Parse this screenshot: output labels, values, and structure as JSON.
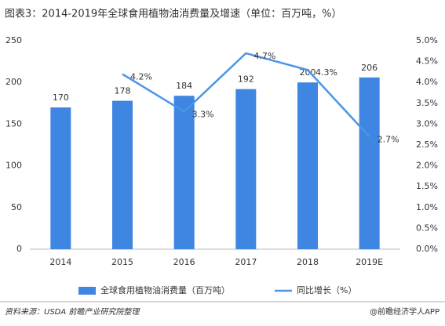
{
  "chart_data": {
    "type": "bar",
    "title": "图表3：2014-2019年全球食用植物油消费量及增速（单位：百万吨，%）",
    "categories": [
      "2014",
      "2015",
      "2016",
      "2017",
      "2018",
      "2019E"
    ],
    "series": [
      {
        "name": "全球食用植物油消费量（百万吨）",
        "type": "bar",
        "color": "#3f85e2",
        "values": [
          170,
          178,
          184,
          192,
          200,
          206
        ]
      },
      {
        "name": "同比增长（%）",
        "type": "line",
        "axis": "y2",
        "color": "#4a95e8",
        "values": [
          null,
          4.2,
          3.3,
          4.7,
          4.3,
          2.7
        ],
        "value_labels": [
          null,
          "4.2%",
          "3.3%",
          "4.7%",
          "4.3%",
          "2.7%"
        ]
      }
    ],
    "ylim": [
      0,
      250
    ],
    "yticks": [
      0,
      50,
      100,
      150,
      200,
      250
    ],
    "y2lim": [
      0,
      5
    ],
    "y2ticks": [
      {
        "value": 0,
        "label": "0.0%"
      },
      {
        "value": 0.5,
        "label": "0.5%"
      },
      {
        "value": 1,
        "label": "1.0%"
      },
      {
        "value": 1.5,
        "label": "1.5%"
      },
      {
        "value": 2,
        "label": "2.0%"
      },
      {
        "value": 2.5,
        "label": "2.5%"
      },
      {
        "value": 3,
        "label": "3.0%"
      },
      {
        "value": 3.5,
        "label": "3.5%"
      },
      {
        "value": 4,
        "label": "4.0%"
      },
      {
        "value": 4.5,
        "label": "4.5%"
      },
      {
        "value": 5,
        "label": "5.0%"
      }
    ],
    "grid": false,
    "legend": "bottom",
    "source": "资料来源：USDA 前瞻产业研究院整理",
    "credit": "@前瞻经济学人APP"
  }
}
